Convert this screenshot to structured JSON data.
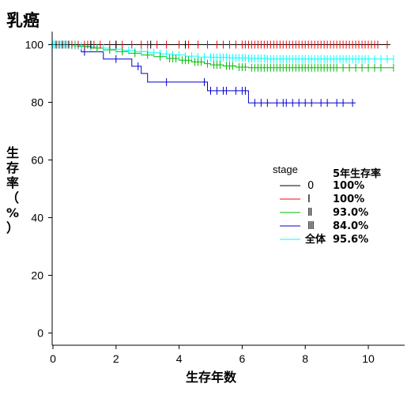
{
  "chart_data": {
    "type": "line",
    "subtype": "kaplan-meier survival curve",
    "title": "乳癌",
    "xlabel": "生存年数",
    "ylabel": "生存率（%）",
    "xlim": [
      0,
      11
    ],
    "ylim": [
      -3,
      104
    ],
    "xticks": [
      0,
      2,
      4,
      6,
      8,
      10
    ],
    "yticks": [
      0,
      20,
      40,
      60,
      80,
      100
    ],
    "grid": false,
    "legend": {
      "placement": "center-right",
      "group_title": "stage",
      "value_title": "5年生存率"
    },
    "series": [
      {
        "name": "0",
        "five_year_survival": "100%",
        "color": "#000000",
        "steps": [
          [
            0,
            100
          ],
          [
            10.7,
            100
          ]
        ],
        "censor_x": [
          0.1,
          0.3,
          0.5,
          1.2,
          2.0,
          3.1,
          4.2
        ]
      },
      {
        "name": "Ⅰ",
        "five_year_survival": "100%",
        "color": "#ff0000",
        "steps": [
          [
            0,
            100
          ],
          [
            10.6,
            100
          ]
        ],
        "censor_x": [
          0.1,
          0.2,
          0.3,
          0.4,
          0.6,
          0.8,
          1.0,
          1.1,
          1.2,
          1.3,
          1.5,
          1.8,
          2.0,
          2.2,
          2.5,
          2.8,
          3.0,
          3.3,
          3.6,
          4.0,
          4.3,
          4.6,
          4.9,
          5.2,
          5.4,
          5.6,
          5.8,
          6.0,
          6.1,
          6.2,
          6.3,
          6.4,
          6.5,
          6.6,
          6.7,
          6.8,
          6.9,
          7.0,
          7.1,
          7.2,
          7.3,
          7.4,
          7.5,
          7.6,
          7.7,
          7.8,
          7.9,
          8.0,
          8.1,
          8.2,
          8.3,
          8.4,
          8.5,
          8.6,
          8.7,
          8.8,
          8.9,
          9.0,
          9.1,
          9.2,
          9.3,
          9.4,
          9.5,
          9.6,
          9.7,
          9.8,
          9.9,
          10.0,
          10.1,
          10.2,
          10.3,
          10.6
        ]
      },
      {
        "name": "Ⅱ",
        "five_year_survival": "93.0%",
        "color": "#00bb00",
        "steps": [
          [
            0,
            100
          ],
          [
            0.8,
            99.4
          ],
          [
            1.2,
            98.8
          ],
          [
            1.6,
            98.2
          ],
          [
            2.0,
            97.6
          ],
          [
            2.4,
            97.0
          ],
          [
            2.8,
            96.4
          ],
          [
            3.2,
            95.8
          ],
          [
            3.6,
            95.2
          ],
          [
            4.0,
            94.6
          ],
          [
            4.4,
            94.0
          ],
          [
            4.8,
            93.4
          ],
          [
            5.0,
            93.0
          ],
          [
            5.4,
            92.6
          ],
          [
            5.8,
            92.2
          ],
          [
            6.2,
            92.0
          ],
          [
            10.8,
            92.0
          ]
        ],
        "censor_x": [
          0.1,
          0.2,
          0.3,
          0.5,
          0.7,
          1.0,
          1.4,
          1.8,
          2.2,
          2.6,
          3.0,
          3.4,
          3.7,
          3.8,
          3.9,
          4.1,
          4.2,
          4.3,
          4.5,
          4.6,
          4.7,
          4.9,
          5.1,
          5.2,
          5.3,
          5.5,
          5.6,
          5.7,
          5.9,
          6.0,
          6.1,
          6.3,
          6.4,
          6.5,
          6.6,
          6.7,
          6.8,
          6.9,
          7.0,
          7.1,
          7.2,
          7.3,
          7.4,
          7.5,
          7.6,
          7.7,
          7.8,
          7.9,
          8.0,
          8.1,
          8.2,
          8.3,
          8.4,
          8.5,
          8.6,
          8.7,
          8.8,
          8.9,
          9.0,
          9.2,
          9.4,
          9.6,
          9.8,
          10.0,
          10.2,
          10.4,
          10.8
        ]
      },
      {
        "name": "Ⅲ",
        "five_year_survival": "84.0%",
        "color": "#0000cc",
        "steps": [
          [
            0,
            100
          ],
          [
            0.9,
            97.5
          ],
          [
            1.6,
            95.0
          ],
          [
            2.5,
            92.5
          ],
          [
            2.8,
            90.0
          ],
          [
            3.0,
            87.0
          ],
          [
            4.9,
            84.0
          ],
          [
            6.2,
            79.8
          ],
          [
            9.6,
            79.8
          ]
        ],
        "censor_x": [
          0.2,
          0.4,
          1.0,
          2.0,
          2.7,
          3.6,
          4.8,
          5.0,
          5.2,
          5.4,
          5.5,
          5.8,
          6.0,
          6.1,
          6.4,
          6.6,
          6.8,
          7.1,
          7.3,
          7.4,
          7.6,
          7.8,
          8.0,
          8.2,
          8.5,
          8.7,
          9.0,
          9.2,
          9.5
        ]
      },
      {
        "name": "全体",
        "five_year_survival": "95.6%",
        "color": "#00ffff",
        "steps": [
          [
            0,
            100
          ],
          [
            0.6,
            99.6
          ],
          [
            1.0,
            99.2
          ],
          [
            1.4,
            98.8
          ],
          [
            1.8,
            98.4
          ],
          [
            2.2,
            98.0
          ],
          [
            2.6,
            97.6
          ],
          [
            3.0,
            97.2
          ],
          [
            3.4,
            96.8
          ],
          [
            3.8,
            96.4
          ],
          [
            4.2,
            96.0
          ],
          [
            4.6,
            95.7
          ],
          [
            5.0,
            95.6
          ],
          [
            5.6,
            95.4
          ],
          [
            6.2,
            95.2
          ],
          [
            6.8,
            95.0
          ],
          [
            10.8,
            95.0
          ]
        ],
        "censor_x": [
          0.0,
          0.05,
          0.1,
          0.15,
          0.2,
          0.25,
          0.3,
          0.35,
          0.4,
          0.45,
          0.5,
          0.6,
          0.7,
          0.8,
          0.9,
          1.0,
          1.2,
          1.4,
          1.6,
          1.8,
          2.0,
          2.2,
          2.4,
          2.6,
          2.8,
          3.0,
          3.2,
          3.4,
          3.6,
          3.8,
          4.0,
          4.2,
          4.4,
          4.6,
          4.8,
          5.0,
          5.1,
          5.2,
          5.3,
          5.4,
          5.5,
          5.6,
          5.7,
          5.8,
          5.9,
          6.0,
          6.1,
          6.2,
          6.3,
          6.4,
          6.5,
          6.6,
          6.7,
          6.8,
          6.9,
          7.0,
          7.1,
          7.2,
          7.3,
          7.4,
          7.5,
          7.6,
          7.7,
          7.8,
          7.9,
          8.0,
          8.1,
          8.2,
          8.3,
          8.4,
          8.5,
          8.6,
          8.7,
          8.8,
          8.9,
          9.0,
          9.1,
          9.2,
          9.3,
          9.4,
          9.5,
          9.6,
          9.7,
          9.8,
          9.9,
          10.0,
          10.2,
          10.4,
          10.6,
          10.8
        ]
      }
    ]
  }
}
